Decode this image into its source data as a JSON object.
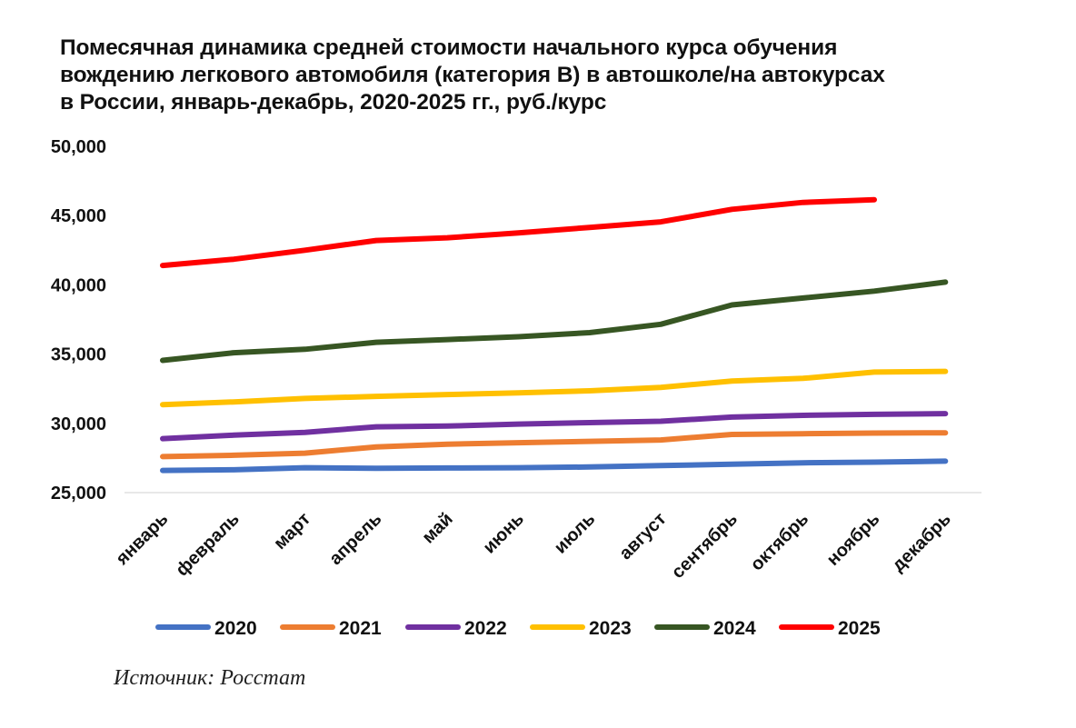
{
  "chart_data": {
    "type": "line",
    "title_lines": [
      "Помесячная динамика средней стоимости начального курса обучения",
      "вождению легкового автомобиля (категория B) в автошколе/на автокурсах",
      "в России, январь-декабрь, 2020-2025 гг., руб./курс"
    ],
    "categories": [
      "январь",
      "февраль",
      "март",
      "апрель",
      "май",
      "июнь",
      "июль",
      "август",
      "сентябрь",
      "октябрь",
      "ноябрь",
      "декабрь"
    ],
    "ylim": [
      25000,
      50000
    ],
    "yticks": [
      25000,
      30000,
      35000,
      40000,
      45000,
      50000
    ],
    "ytick_labels": [
      "25,000",
      "30,000",
      "35,000",
      "40,000",
      "45,000",
      "50,000"
    ],
    "grid": false,
    "legend_position": "bottom",
    "series": [
      {
        "name": "2020",
        "color": "#4472C4",
        "values": [
          26600,
          26650,
          26800,
          26750,
          26780,
          26800,
          26850,
          26950,
          27050,
          27150,
          27200,
          27270
        ]
      },
      {
        "name": "2021",
        "color": "#ED7D31",
        "values": [
          27600,
          27700,
          27850,
          28300,
          28500,
          28600,
          28700,
          28800,
          29200,
          29250,
          29300,
          29320
        ]
      },
      {
        "name": "2022",
        "color": "#7030A0",
        "values": [
          28900,
          29150,
          29350,
          29750,
          29800,
          29950,
          30050,
          30150,
          30450,
          30580,
          30650,
          30700
        ]
      },
      {
        "name": "2023",
        "color": "#FFC000",
        "values": [
          31350,
          31550,
          31800,
          31950,
          32080,
          32200,
          32350,
          32600,
          33050,
          33250,
          33700,
          33750
        ]
      },
      {
        "name": "2024",
        "color": "#375623",
        "values": [
          34550,
          35100,
          35350,
          35850,
          36050,
          36250,
          36550,
          37150,
          38550,
          39050,
          39550,
          40200
        ]
      },
      {
        "name": "2025",
        "color": "#FF0000",
        "values": [
          41400,
          41850,
          42500,
          43200,
          43400,
          43750,
          44150,
          44550,
          45450,
          45950,
          46150,
          null
        ]
      }
    ],
    "source": "Источник: Росстат"
  }
}
